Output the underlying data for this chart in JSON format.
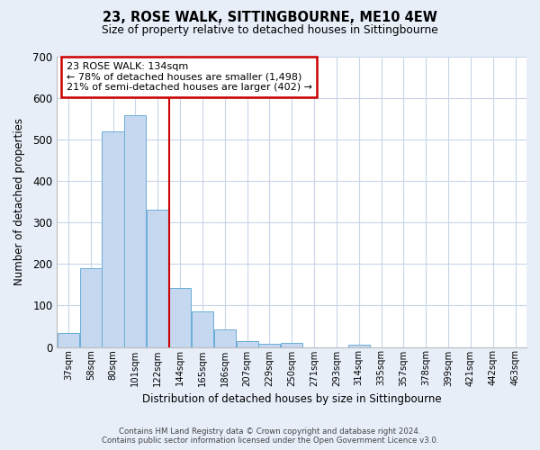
{
  "title": "23, ROSE WALK, SITTINGBOURNE, ME10 4EW",
  "subtitle": "Size of property relative to detached houses in Sittingbourne",
  "xlabel": "Distribution of detached houses by size in Sittingbourne",
  "ylabel": "Number of detached properties",
  "bar_labels": [
    "37sqm",
    "58sqm",
    "80sqm",
    "101sqm",
    "122sqm",
    "144sqm",
    "165sqm",
    "186sqm",
    "207sqm",
    "229sqm",
    "250sqm",
    "271sqm",
    "293sqm",
    "314sqm",
    "335sqm",
    "357sqm",
    "378sqm",
    "399sqm",
    "421sqm",
    "442sqm",
    "463sqm"
  ],
  "bar_values": [
    33,
    190,
    520,
    557,
    330,
    143,
    86,
    42,
    15,
    7,
    10,
    0,
    0,
    5,
    0,
    0,
    0,
    0,
    0,
    0,
    0
  ],
  "bar_color": "#c5d8f0",
  "bar_edge_color": "#6baed6",
  "vline_color": "#cc0000",
  "ylim": [
    0,
    700
  ],
  "yticks": [
    0,
    100,
    200,
    300,
    400,
    500,
    600,
    700
  ],
  "annotation_title": "23 ROSE WALK: 134sqm",
  "annotation_line1": "← 78% of detached houses are smaller (1,498)",
  "annotation_line2": "21% of semi-detached houses are larger (402) →",
  "annotation_box_color": "#ffffff",
  "annotation_box_edge": "#cc0000",
  "footer_line1": "Contains HM Land Registry data © Crown copyright and database right 2024.",
  "footer_line2": "Contains public sector information licensed under the Open Government Licence v3.0.",
  "bg_color": "#e8eef8",
  "plot_bg_color": "#ffffff",
  "grid_color": "#c8d4e8",
  "vline_x_index": 4.5
}
